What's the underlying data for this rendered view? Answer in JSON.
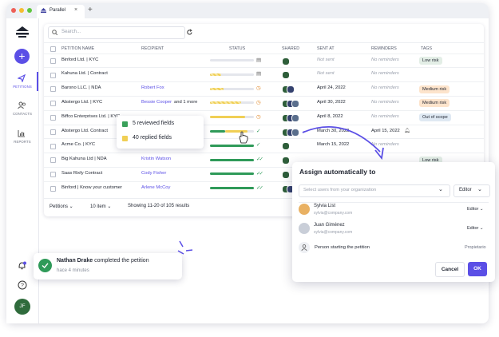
{
  "browser": {
    "tab_title": "Parallel"
  },
  "sidebar": {
    "items": [
      "PETITIONS",
      "CONTACTS",
      "REPORTS"
    ],
    "avatar": "JF"
  },
  "search": {
    "placeholder": "Search..."
  },
  "table": {
    "columns": [
      "PETITION NAME",
      "RECIPIENT",
      "STATUS",
      "SHARED",
      "SENT AT",
      "REMINDERS",
      "TAGS"
    ],
    "rows": [
      {
        "name": "Binford Ltd. | KYC",
        "sent_at": "Not sent",
        "reminders": "No reminders",
        "tag": "Low risk"
      },
      {
        "name": "Kahuna Ltd. | Contract",
        "sent_at": "Not sent",
        "reminders": "No reminders"
      },
      {
        "name": "Barono LLC. | NDA",
        "recipient": "Robert Fox",
        "sent_at": "April 24, 2022",
        "reminders": "No reminders",
        "tag": "Medium risk"
      },
      {
        "name": "Abstergo Ltd. | KYC",
        "recipient": "Bessie Cooper",
        "recipient_extra": "and 1 more",
        "sent_at": "April 30, 2022",
        "reminders": "No reminders",
        "tag": "Medium risk"
      },
      {
        "name": "Biffco Enterprises Ltd. | KYC",
        "sent_at": "April 8, 2022",
        "reminders": "No reminders",
        "tag": "Out of scope"
      },
      {
        "name": "Abstergo Ltd. Contract",
        "sent_at": "March 30, 2022",
        "reminders": "April 15, 2022"
      },
      {
        "name": "Acme Co. | KYC",
        "sent_at": "March 15, 2022",
        "reminders": "No reminders"
      },
      {
        "name": "Big Kahuna Ltd | NDA",
        "recipient": "Kristin Watson",
        "tag": "Low risk"
      },
      {
        "name": "Saas Rixfy Contract",
        "recipient": "Cody Fisher"
      },
      {
        "name": "Binford | Know your customer",
        "recipient": "Arlene McCoy"
      }
    ]
  },
  "footer": {
    "view": "Petitions",
    "page_size": "10 item",
    "summary": "Showing 11-20 of 105 results"
  },
  "tooltip": {
    "items": [
      "5 reviewed fields",
      "40 replied fields"
    ]
  },
  "dialog": {
    "title": "Assign automatically to",
    "select_placeholder": "Select users from your organization",
    "role_select": "Editor",
    "users": [
      {
        "name": "Sylvia List",
        "email": "sylvia@company.com",
        "role": "Editor"
      },
      {
        "name": "Juan Giménez",
        "email": "sylvia@company.com",
        "role": "Editor"
      }
    ],
    "starter": {
      "label": "Person starting the petition",
      "role": "Propietario"
    },
    "cancel": "Cancel",
    "ok": "OK"
  },
  "notification": {
    "name": "Nathan Drake",
    "message": "completed the petition",
    "time": "hace 4 minutes"
  }
}
